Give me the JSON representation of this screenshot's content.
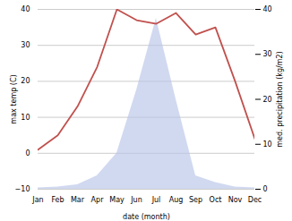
{
  "chart_data": {
    "type": "line",
    "xlabel": "date (month)",
    "ylabel": "max temp (C)",
    "y2label": "med. precipitation (kg/m2)",
    "categories": [
      "Jan",
      "Feb",
      "Mar",
      "Apr",
      "May",
      "Jun",
      "Jul",
      "Aug",
      "Sep",
      "Oct",
      "Nov",
      "Dec"
    ],
    "series": [
      {
        "type": "area",
        "axis": "y2",
        "color": "#b8c4e8",
        "values": [
          0.3,
          0.5,
          1.0,
          3.0,
          8.0,
          22.0,
          38.0,
          20.0,
          3.0,
          1.5,
          0.5,
          0.3
        ]
      },
      {
        "type": "line",
        "color": "#c0504d",
        "values": [
          1,
          5,
          13,
          24,
          40,
          37,
          36,
          39,
          33,
          35,
          20,
          4
        ]
      }
    ],
    "ylim": [
      -10,
      40
    ],
    "yticks": [
      -10,
      0,
      10,
      20,
      30,
      40
    ],
    "y2lim": [
      0,
      40
    ],
    "y2ticks": [
      0,
      10,
      20,
      30,
      40
    ],
    "grid": true
  }
}
